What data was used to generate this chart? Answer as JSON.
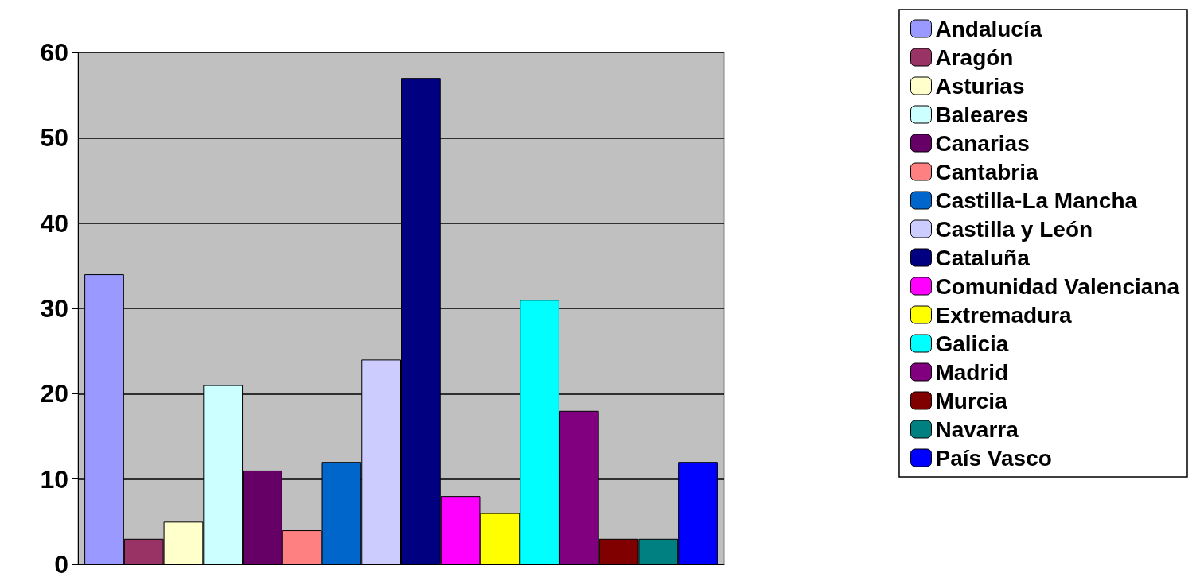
{
  "chart_data": {
    "type": "bar",
    "categories": [
      null
    ],
    "series": [
      {
        "name": "Andalucía",
        "color": "#9999ff",
        "values": [
          34
        ]
      },
      {
        "name": "Aragón",
        "color": "#993366",
        "values": [
          3
        ]
      },
      {
        "name": "Asturias",
        "color": "#ffffcc",
        "values": [
          5
        ]
      },
      {
        "name": "Baleares",
        "color": "#ccffff",
        "values": [
          21
        ]
      },
      {
        "name": "Canarias",
        "color": "#660066",
        "values": [
          11
        ]
      },
      {
        "name": "Cantabria",
        "color": "#ff8080",
        "values": [
          4
        ]
      },
      {
        "name": "Castilla-La Mancha",
        "color": "#0066cc",
        "values": [
          12
        ]
      },
      {
        "name": "Castilla y León",
        "color": "#ccccff",
        "values": [
          24
        ]
      },
      {
        "name": "Cataluña",
        "color": "#000080",
        "values": [
          57
        ]
      },
      {
        "name": "Comunidad Valenciana",
        "color": "#ff00ff",
        "values": [
          8
        ]
      },
      {
        "name": "Extremadura",
        "color": "#ffff00",
        "values": [
          6
        ]
      },
      {
        "name": "Galicia",
        "color": "#00ffff",
        "values": [
          31
        ]
      },
      {
        "name": "Madrid",
        "color": "#800080",
        "values": [
          18
        ]
      },
      {
        "name": "Murcia",
        "color": "#800000",
        "values": [
          3
        ]
      },
      {
        "name": "Navarra",
        "color": "#008080",
        "values": [
          3
        ]
      },
      {
        "name": "País Vasco",
        "color": "#0000ff",
        "values": [
          12
        ]
      }
    ],
    "ylim": [
      0,
      60
    ],
    "yticks": [
      0,
      10,
      20,
      30,
      40,
      50,
      60
    ],
    "grid": "y",
    "legend": "right"
  }
}
